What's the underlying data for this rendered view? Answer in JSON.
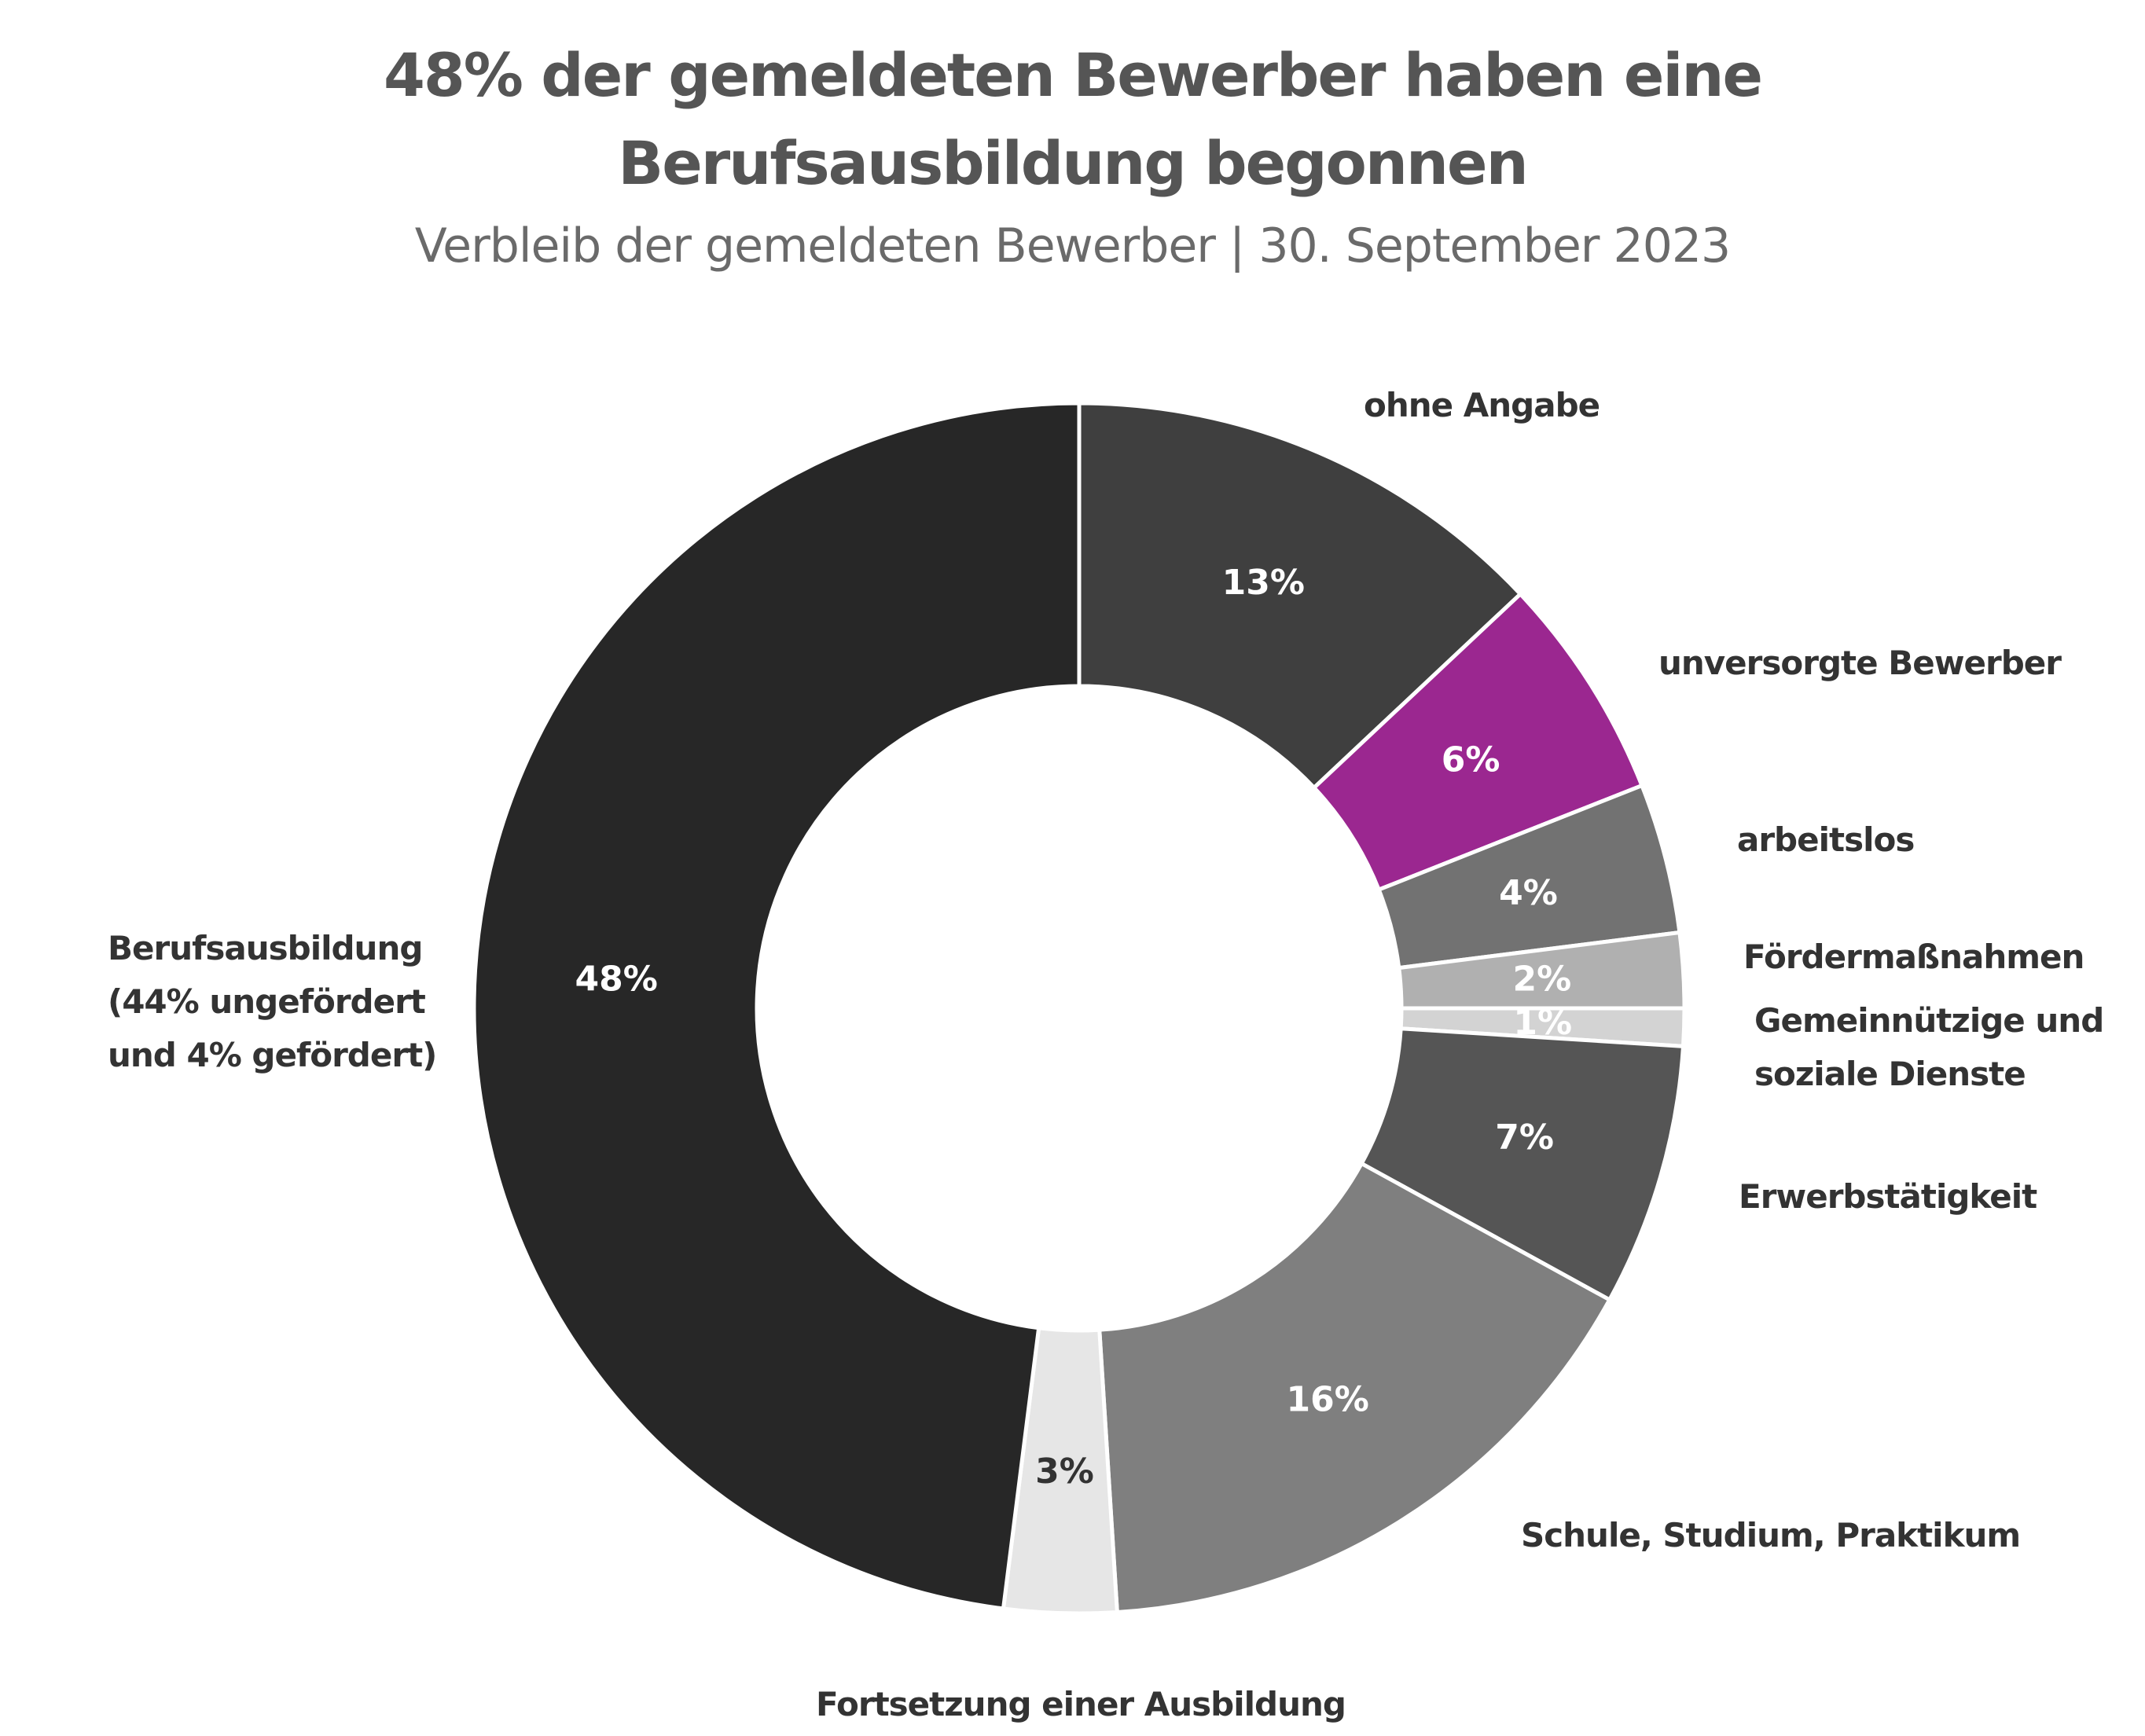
{
  "title": "48% der gemeldeten Bewerber haben eine Berufsausbildung begonnen",
  "subtitle": "Verbleib der gemeldeten Bewerber | 30. September 2023",
  "chart_data": {
    "type": "pie",
    "donut": true,
    "start_angle_deg": 0,
    "direction": "clockwise",
    "slices": [
      {
        "name": "ohne Angabe",
        "value": 13,
        "label": "13%",
        "color": "#3f3f3f",
        "text_color": "#ffffff",
        "category_lines": [
          "ohne Angabe"
        ]
      },
      {
        "name": "unversorgte Bewerber",
        "value": 6,
        "label": "6%",
        "color": "#9b2790",
        "text_color": "#ffffff",
        "category_lines": [
          "unversorgte Bewerber"
        ]
      },
      {
        "name": "arbeitslos",
        "value": 4,
        "label": "4%",
        "color": "#727272",
        "text_color": "#ffffff",
        "category_lines": [
          "arbeitslos"
        ]
      },
      {
        "name": "Fördermaßnahmen",
        "value": 2,
        "label": "2%",
        "color": "#b0b0b0",
        "text_color": "#ffffff",
        "category_lines": [
          "Fördermaßnahmen"
        ]
      },
      {
        "name": "Gemeinnützige und soziale Dienste",
        "value": 1,
        "label": "1%",
        "color": "#d3d3d3",
        "text_color": "#ffffff",
        "category_lines": [
          "Gemeinnützige und",
          "soziale Dienste"
        ]
      },
      {
        "name": "Erwerbstätigkeit",
        "value": 7,
        "label": "7%",
        "color": "#555555",
        "text_color": "#ffffff",
        "category_lines": [
          "Erwerbstätigkeit"
        ]
      },
      {
        "name": "Schule, Studium, Praktikum",
        "value": 16,
        "label": "16%",
        "color": "#7f7f7f",
        "text_color": "#ffffff",
        "category_lines": [
          "Schule, Studium, Praktikum"
        ]
      },
      {
        "name": "Fortsetzung einer Ausbildung",
        "value": 3,
        "label": "3%",
        "color": "#e6e6e6",
        "text_color": "#333333",
        "category_lines": [
          "Fortsetzung einer Ausbildung"
        ]
      },
      {
        "name": "Berufsausbildung",
        "value": 48,
        "label": "48%",
        "color": "#272727",
        "text_color": "#ffffff",
        "category_lines": [
          "Berufsausbildung",
          "(44% ungefördert",
          "und 4% gefördert)"
        ]
      }
    ]
  }
}
